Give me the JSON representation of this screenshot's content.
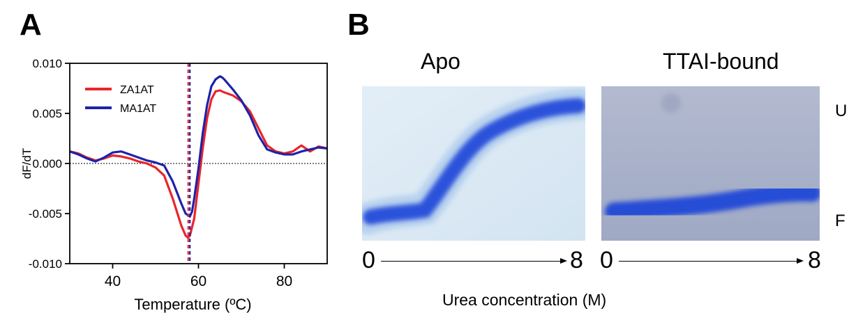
{
  "panels": {
    "a": "A",
    "b": "B"
  },
  "chart_data": {
    "type": "line",
    "title": "",
    "xlabel": "Temperature (ºC)",
    "ylabel": "dF/dT",
    "xlim": [
      30,
      90
    ],
    "ylim": [
      -0.01,
      0.01
    ],
    "xticks": [
      "40",
      "60",
      "80"
    ],
    "yticks": [
      "0.010",
      "0.005",
      "0.000",
      "-0.005",
      "-0.010"
    ],
    "legend_position": "top-left",
    "reference_line_y": 0,
    "series": [
      {
        "name": "ZA1AT",
        "color": "#e8252b",
        "vline_x": 57.6,
        "x": [
          30,
          32,
          34,
          36,
          38,
          40,
          42,
          44,
          46,
          48,
          50,
          52,
          54,
          56,
          57,
          57.6,
          58,
          59,
          60,
          61,
          62,
          63,
          64,
          65,
          66,
          68,
          70,
          72,
          74,
          76,
          78,
          80,
          82,
          84,
          86,
          88,
          90
        ],
        "y": [
          0.0012,
          0.001,
          0.0006,
          0.0003,
          0.0005,
          0.0008,
          0.0007,
          0.0005,
          0.0002,
          0.0,
          -0.0004,
          -0.0012,
          -0.0035,
          -0.0062,
          -0.0072,
          -0.0074,
          -0.0072,
          -0.0055,
          -0.002,
          0.0015,
          0.0045,
          0.0064,
          0.0072,
          0.0073,
          0.0071,
          0.0068,
          0.0062,
          0.0052,
          0.0035,
          0.0018,
          0.0012,
          0.001,
          0.0012,
          0.0018,
          0.0012,
          0.0017,
          0.0015
        ]
      },
      {
        "name": "MA1AT",
        "color": "#1e22a8",
        "vline_x": 58.0,
        "x": [
          30,
          32,
          34,
          36,
          38,
          40,
          42,
          44,
          46,
          48,
          50,
          52,
          54,
          56,
          57,
          58,
          58.5,
          59,
          60,
          61,
          62,
          63,
          64,
          65,
          65.5,
          66,
          68,
          70,
          72,
          74,
          76,
          78,
          80,
          82,
          84,
          86,
          88,
          90
        ],
        "y": [
          0.0012,
          0.0009,
          0.0005,
          0.0002,
          0.0006,
          0.0011,
          0.0012,
          0.0009,
          0.0006,
          0.0003,
          0.0001,
          -0.0002,
          -0.0018,
          -0.004,
          -0.005,
          -0.0053,
          -0.0048,
          -0.0035,
          -0.0005,
          0.003,
          0.0058,
          0.0077,
          0.0084,
          0.0087,
          0.0086,
          0.0084,
          0.0074,
          0.0063,
          0.0048,
          0.0028,
          0.0014,
          0.0011,
          0.0009,
          0.0009,
          0.0012,
          0.0014,
          0.0016,
          0.0015
        ]
      }
    ]
  },
  "gels": {
    "apo": {
      "title": "Apo",
      "start": "0",
      "end": "8"
    },
    "ttai": {
      "title": "TTAI-bound",
      "start": "0",
      "end": "8"
    }
  },
  "band_labels": {
    "upper": "U",
    "lower": "F"
  },
  "xaxis_label": "Urea concentration (M)",
  "colors": {
    "gel_stain": "#1f45d8",
    "apo_background": "#dbe9f3",
    "ttai_background": "#a9b2c9"
  }
}
